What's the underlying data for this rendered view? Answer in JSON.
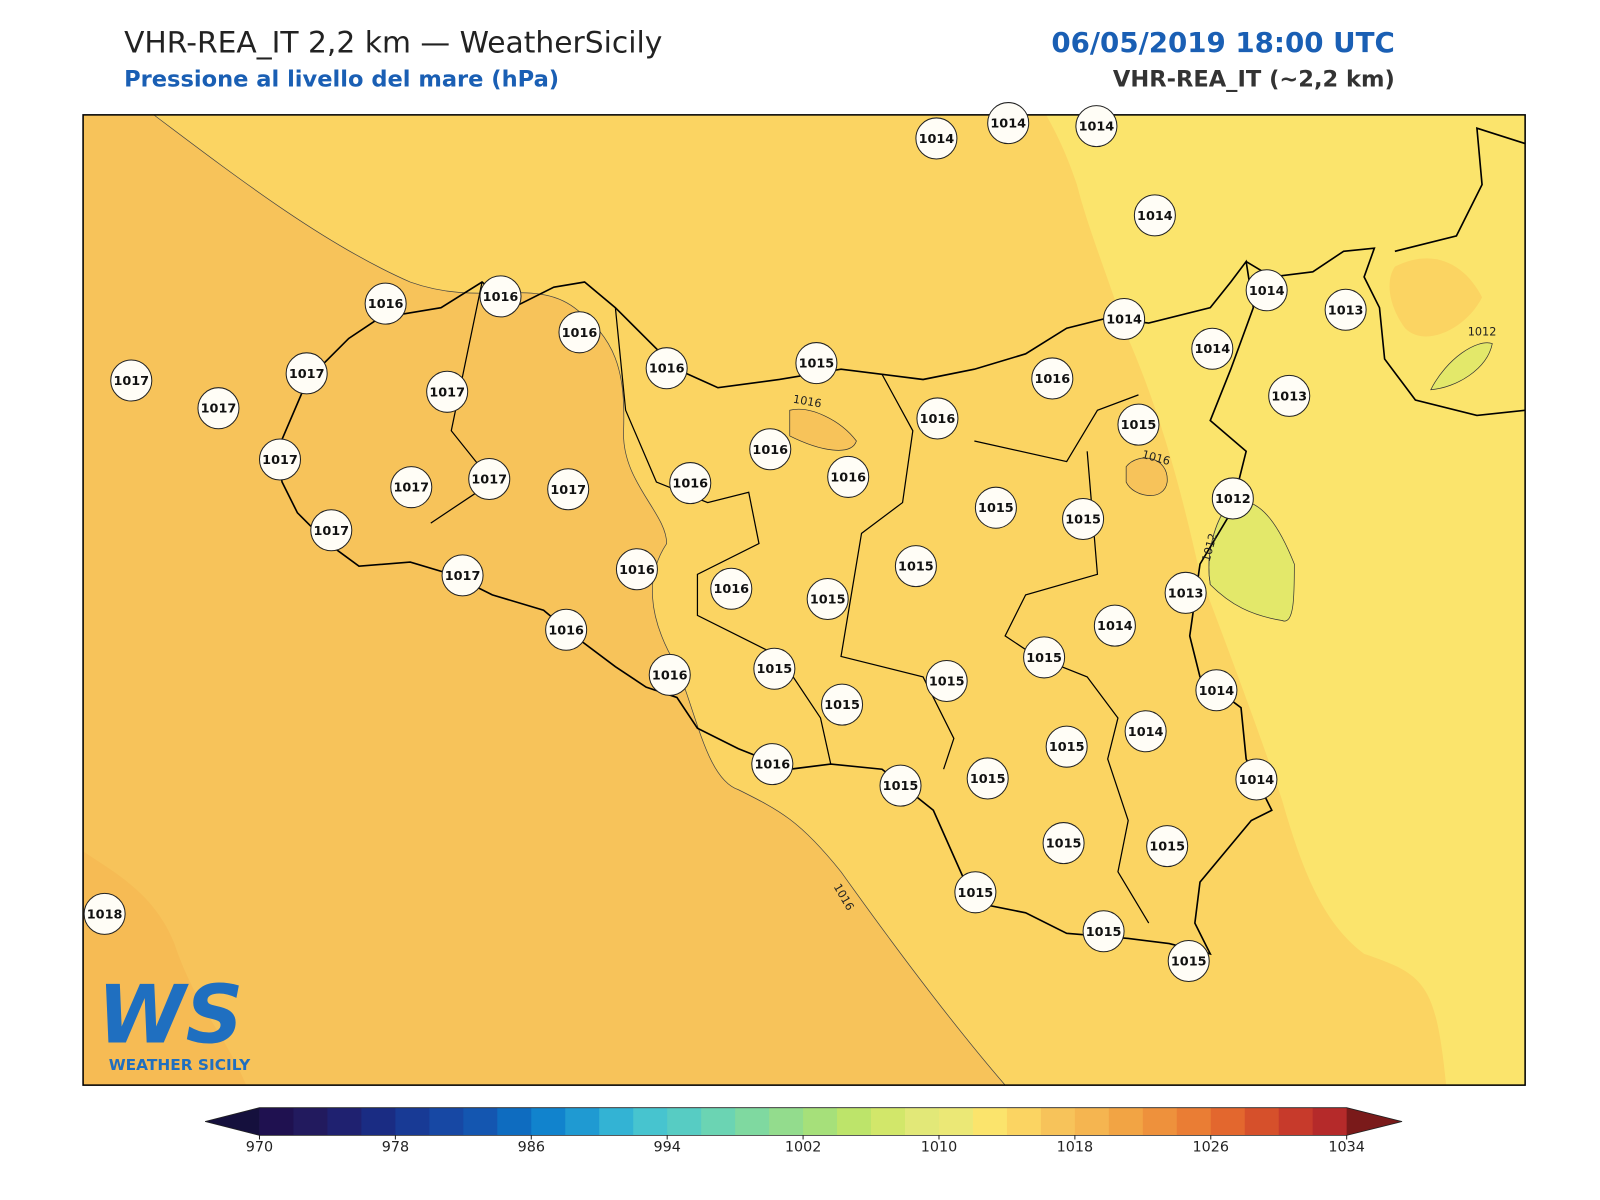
{
  "header": {
    "title": "VHR-REA_IT 2,2 km — WeatherSicily",
    "subtitle": "Pressione al livello del mare (hPa)",
    "datetime": "06/05/2019 18:00 UTC",
    "model": "VHR-REA_IT (~2,2 km)"
  },
  "map": {
    "contour_labels": [
      "1016",
      "1016",
      "1016",
      "1012",
      "1012"
    ],
    "stations": [
      1014,
      1014,
      1014,
      1014,
      1014,
      1013,
      1014,
      1014,
      1013,
      1016,
      1016,
      1016,
      1016,
      1015,
      1016,
      1017,
      1017,
      1017,
      1017,
      1016,
      1015,
      1016,
      1017,
      1016,
      1017,
      1017,
      1017,
      1016,
      1015,
      1015,
      1012,
      1017,
      1015,
      1016,
      1017,
      1016,
      1015,
      1013,
      1016,
      1014,
      1015,
      1015,
      1016,
      1015,
      1014,
      1015,
      1014,
      1015,
      1016,
      1015,
      1015,
      1014,
      1015,
      1015,
      1015,
      1015,
      1015,
      1018
    ]
  },
  "logo": {
    "mark": "WS",
    "text": "WEATHER SICILY"
  },
  "colorbar": {
    "lim": [
      970,
      1034
    ],
    "ticks": [
      970,
      978,
      986,
      994,
      1002,
      1010,
      1018,
      1026,
      1034
    ],
    "under_color": "#15103d",
    "over_color": "#7a1a1a",
    "colors": [
      "#1f1150",
      "#221a5e",
      "#1f2170",
      "#1a2c83",
      "#183a95",
      "#1748a4",
      "#1456b0",
      "#0e6cc0",
      "#1183cd",
      "#1f9ad2",
      "#33b3d4",
      "#47c4cf",
      "#57ccc3",
      "#6bd4b3",
      "#7fd9a0",
      "#93dc8d",
      "#a6e07a",
      "#bde46a",
      "#d2e76a",
      "#e2e878",
      "#ebe876",
      "#fbe46c",
      "#fbd462",
      "#f7c35a",
      "#f5b550",
      "#f2a444",
      "#ee913c",
      "#ea7d34",
      "#e3672e",
      "#d6502b",
      "#c73a2b",
      "#b52a2a"
    ]
  }
}
